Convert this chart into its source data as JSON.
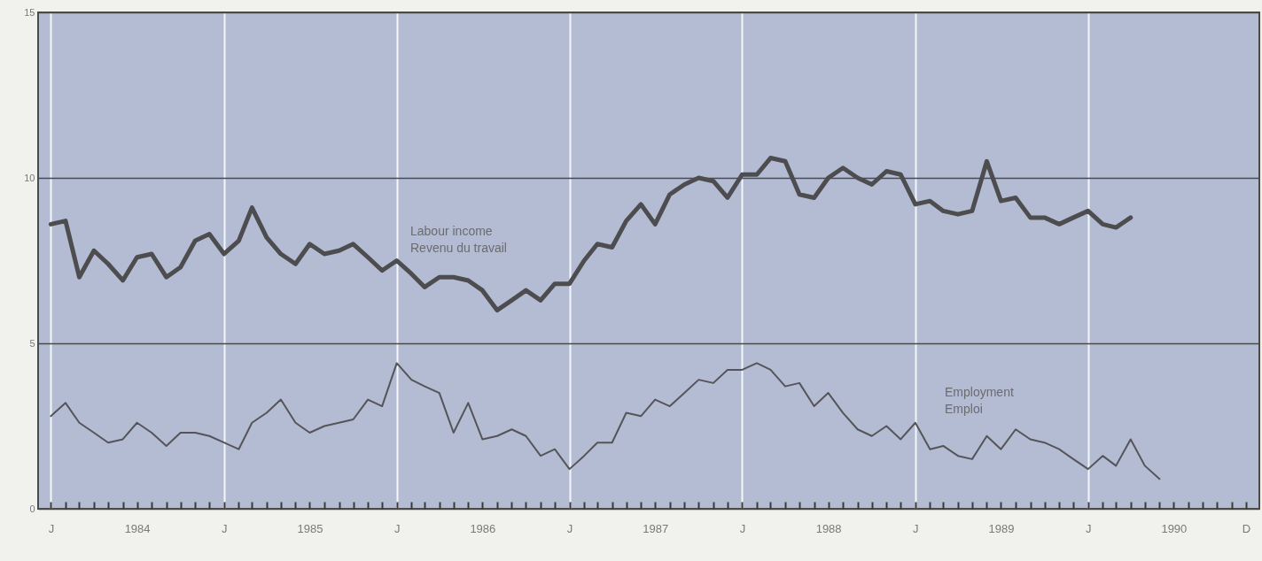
{
  "chart_data": {
    "type": "line",
    "x": [
      "1984-01",
      "1984-02",
      "1984-03",
      "1984-04",
      "1984-05",
      "1984-06",
      "1984-07",
      "1984-08",
      "1984-09",
      "1984-10",
      "1984-11",
      "1984-12",
      "1985-01",
      "1985-02",
      "1985-03",
      "1985-04",
      "1985-05",
      "1985-06",
      "1985-07",
      "1985-08",
      "1985-09",
      "1985-10",
      "1985-11",
      "1985-12",
      "1986-01",
      "1986-02",
      "1986-03",
      "1986-04",
      "1986-05",
      "1986-06",
      "1986-07",
      "1986-08",
      "1986-09",
      "1986-10",
      "1986-11",
      "1986-12",
      "1987-01",
      "1987-02",
      "1987-03",
      "1987-04",
      "1987-05",
      "1987-06",
      "1987-07",
      "1987-08",
      "1987-09",
      "1987-10",
      "1987-11",
      "1987-12",
      "1988-01",
      "1988-02",
      "1988-03",
      "1988-04",
      "1988-05",
      "1988-06",
      "1988-07",
      "1988-08",
      "1988-09",
      "1988-10",
      "1988-11",
      "1988-12",
      "1989-01",
      "1989-02",
      "1989-03",
      "1989-04",
      "1989-05",
      "1989-06",
      "1989-07",
      "1989-08",
      "1989-09",
      "1989-10",
      "1989-11",
      "1989-12",
      "1990-01",
      "1990-02",
      "1990-03",
      "1990-04",
      "1990-05",
      "1990-06"
    ],
    "series": [
      {
        "name": "Labour income\nRevenu du travail",
        "color": "#4d4d4f",
        "values": [
          8.6,
          8.7,
          7.0,
          7.8,
          7.4,
          6.9,
          7.6,
          7.7,
          7.0,
          7.3,
          8.1,
          8.3,
          7.7,
          8.1,
          9.1,
          8.2,
          7.7,
          7.4,
          8.0,
          7.7,
          7.8,
          8.0,
          7.6,
          7.2,
          7.5,
          7.1,
          6.7,
          7.0,
          7.0,
          6.9,
          6.6,
          6.0,
          6.3,
          6.6,
          6.3,
          6.8,
          6.8,
          7.5,
          8.0,
          7.9,
          8.7,
          9.2,
          8.6,
          9.5,
          9.8,
          10.0,
          9.9,
          9.4,
          10.1,
          10.1,
          10.6,
          10.5,
          9.5,
          9.4,
          10.0,
          10.3,
          10.0,
          9.8,
          10.2,
          10.1,
          9.2,
          9.3,
          9.0,
          8.9,
          9.0,
          10.5,
          9.3,
          9.4,
          8.8,
          8.8,
          8.6,
          8.8,
          9.0,
          8.6,
          8.5,
          8.8,
          null,
          null
        ]
      },
      {
        "name": "Employment\nEmploi",
        "color": "#555559",
        "values": [
          2.8,
          3.2,
          2.6,
          2.3,
          2.0,
          2.1,
          2.6,
          2.3,
          1.9,
          2.3,
          2.3,
          2.2,
          2.0,
          1.8,
          2.6,
          2.9,
          3.3,
          2.6,
          2.3,
          2.5,
          2.6,
          2.7,
          3.3,
          3.1,
          4.4,
          3.9,
          3.7,
          3.5,
          2.3,
          3.2,
          2.1,
          2.2,
          2.4,
          2.2,
          1.6,
          1.8,
          1.2,
          1.6,
          2.0,
          2.0,
          2.9,
          2.8,
          3.3,
          3.1,
          3.5,
          3.9,
          3.8,
          4.2,
          4.2,
          4.4,
          4.2,
          3.7,
          3.8,
          3.1,
          3.5,
          2.9,
          2.4,
          2.2,
          2.5,
          2.1,
          2.6,
          1.8,
          1.9,
          1.6,
          1.5,
          2.2,
          1.8,
          2.4,
          2.1,
          2.0,
          1.8,
          1.5,
          1.2,
          1.6,
          1.3,
          2.1,
          1.3,
          0.9
        ]
      }
    ],
    "xlim": [
      "1983-12-05",
      "1990-12-29"
    ],
    "xticks": [
      {
        "value": "1984-01",
        "label": "J"
      },
      {
        "value": "1984-02",
        "label": null
      },
      {
        "value": "1984-03",
        "label": null
      },
      {
        "value": "1984-04",
        "label": null
      },
      {
        "value": "1984-05",
        "label": null
      },
      {
        "value": "1984-06",
        "label": null
      },
      {
        "value": "1984-07",
        "label": "1984"
      },
      {
        "value": "1984-08",
        "label": null
      },
      {
        "value": "1984-09",
        "label": null
      },
      {
        "value": "1984-10",
        "label": null
      },
      {
        "value": "1984-11",
        "label": null
      },
      {
        "value": "1984-12",
        "label": null
      },
      {
        "value": "1985-01",
        "label": "J"
      },
      {
        "value": "1985-02",
        "label": null
      },
      {
        "value": "1985-03",
        "label": null
      },
      {
        "value": "1985-04",
        "label": null
      },
      {
        "value": "1985-05",
        "label": null
      },
      {
        "value": "1985-06",
        "label": null
      },
      {
        "value": "1985-07",
        "label": "1985"
      },
      {
        "value": "1985-08",
        "label": null
      },
      {
        "value": "1985-09",
        "label": null
      },
      {
        "value": "1985-10",
        "label": null
      },
      {
        "value": "1985-11",
        "label": null
      },
      {
        "value": "1985-12",
        "label": null
      },
      {
        "value": "1986-01",
        "label": "J"
      },
      {
        "value": "1986-02",
        "label": null
      },
      {
        "value": "1986-03",
        "label": null
      },
      {
        "value": "1986-04",
        "label": null
      },
      {
        "value": "1986-05",
        "label": null
      },
      {
        "value": "1986-06",
        "label": null
      },
      {
        "value": "1986-07",
        "label": "1986"
      },
      {
        "value": "1986-08",
        "label": null
      },
      {
        "value": "1986-09",
        "label": null
      },
      {
        "value": "1986-10",
        "label": null
      },
      {
        "value": "1986-11",
        "label": null
      },
      {
        "value": "1986-12",
        "label": null
      },
      {
        "value": "1987-01",
        "label": "J"
      },
      {
        "value": "1987-02",
        "label": null
      },
      {
        "value": "1987-03",
        "label": null
      },
      {
        "value": "1987-04",
        "label": null
      },
      {
        "value": "1987-05",
        "label": null
      },
      {
        "value": "1987-06",
        "label": null
      },
      {
        "value": "1987-07",
        "label": "1987"
      },
      {
        "value": "1987-08",
        "label": null
      },
      {
        "value": "1987-09",
        "label": null
      },
      {
        "value": "1987-10",
        "label": null
      },
      {
        "value": "1987-11",
        "label": null
      },
      {
        "value": "1987-12",
        "label": null
      },
      {
        "value": "1988-01",
        "label": "J"
      },
      {
        "value": "1988-02",
        "label": null
      },
      {
        "value": "1988-03",
        "label": null
      },
      {
        "value": "1988-04",
        "label": null
      },
      {
        "value": "1988-05",
        "label": null
      },
      {
        "value": "1988-06",
        "label": null
      },
      {
        "value": "1988-07",
        "label": "1988"
      },
      {
        "value": "1988-08",
        "label": null
      },
      {
        "value": "1988-09",
        "label": null
      },
      {
        "value": "1988-10",
        "label": null
      },
      {
        "value": "1988-11",
        "label": null
      },
      {
        "value": "1988-12",
        "label": null
      },
      {
        "value": "1989-01",
        "label": "J"
      },
      {
        "value": "1989-02",
        "label": null
      },
      {
        "value": "1989-03",
        "label": null
      },
      {
        "value": "1989-04",
        "label": null
      },
      {
        "value": "1989-05",
        "label": null
      },
      {
        "value": "1989-06",
        "label": null
      },
      {
        "value": "1989-07",
        "label": "1989"
      },
      {
        "value": "1989-08",
        "label": null
      },
      {
        "value": "1989-09",
        "label": null
      },
      {
        "value": "1989-10",
        "label": null
      },
      {
        "value": "1989-11",
        "label": null
      },
      {
        "value": "1989-12",
        "label": null
      },
      {
        "value": "1990-01",
        "label": "J"
      },
      {
        "value": "1990-02",
        "label": null
      },
      {
        "value": "1990-03",
        "label": null
      },
      {
        "value": "1990-04",
        "label": null
      },
      {
        "value": "1990-05",
        "label": null
      },
      {
        "value": "1990-06",
        "label": null
      },
      {
        "value": "1990-07",
        "label": "1990"
      },
      {
        "value": "1990-08",
        "label": null
      },
      {
        "value": "1990-09",
        "label": null
      },
      {
        "value": "1990-10",
        "label": null
      },
      {
        "value": "1990-11",
        "label": null
      },
      {
        "value": "1990-12",
        "label": "D"
      }
    ],
    "ylim": [
      0,
      15
    ],
    "yticks": [
      0,
      5,
      10,
      15
    ],
    "grid": true
  }
}
